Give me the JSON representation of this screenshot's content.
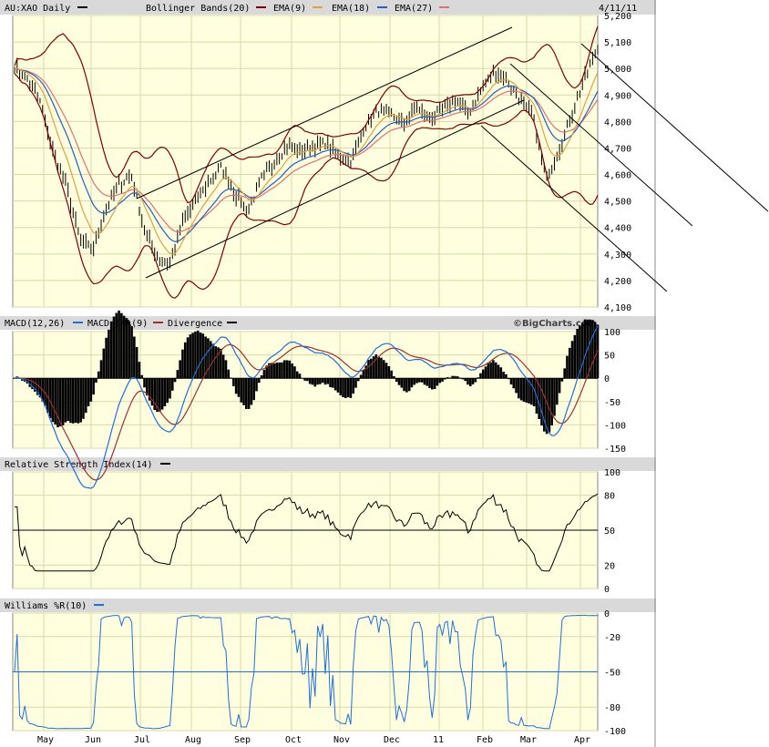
{
  "colors": {
    "panel_bg": "#ffffe0",
    "header_bg": "#d9d9d9",
    "grid": "#d8d8a8",
    "price": "#000000",
    "bollinger": "#800000",
    "ema9": "#e0a040",
    "ema18": "#2060c0",
    "ema27": "#e07070",
    "macd": "#1e6fd9",
    "macd_signal": "#a03030",
    "divergence": "#000000",
    "rsi": "#000000",
    "williams": "#1e6fd9",
    "trend_lines": "#000000"
  },
  "header": {
    "symbol": "AU:XAO Daily",
    "bollinger": "Bollinger Bands(20)",
    "ema9": "EMA(9)",
    "ema18": "EMA(18)",
    "ema27": "EMA(27)",
    "date": "4/11/11"
  },
  "macd_header": {
    "macd": "MACD(12,26)",
    "macd_ema": "MACD EMA(9)",
    "divergence": "Divergence",
    "watermark": "©BigCharts.com"
  },
  "rsi_header": {
    "label": "Relative Strength Index(14)"
  },
  "williams_header": {
    "label": "Williams %R(10)"
  },
  "x_labels": [
    "May",
    "Jun",
    "Jul",
    "Aug",
    "Sep",
    "Oct",
    "Nov",
    "Dec",
    "11",
    "Feb",
    "Mar",
    "Apr"
  ],
  "chart_data": [
    {
      "type": "line",
      "panel": "price",
      "ylim": [
        4100,
        5200
      ],
      "y_ticks": [
        "5,200",
        "5,100",
        "5,000",
        "4,900",
        "4,800",
        "4,700",
        "4,600",
        "4,500",
        "4,400",
        "4,300",
        "4,200",
        "4,100"
      ],
      "series": [
        {
          "name": "AU:XAO Daily",
          "values": [
            5010,
            4960,
            4870,
            4680,
            4560,
            4360,
            4310,
            4460,
            4560,
            4600,
            4390,
            4290,
            4260,
            4420,
            4500,
            4570,
            4630,
            4530,
            4460,
            4580,
            4640,
            4710,
            4690,
            4700,
            4720,
            4670,
            4650,
            4780,
            4840,
            4830,
            4790,
            4850,
            4810,
            4840,
            4880,
            4830,
            4920,
            4990,
            4960,
            4880,
            4820,
            4580,
            4690,
            4830,
            4960,
            5080
          ]
        }
      ]
    },
    {
      "type": "line",
      "panel": "macd",
      "ylim": [
        -150,
        100
      ],
      "y_ticks": [
        "100",
        "50",
        "0",
        "-50",
        "-100",
        "-150"
      ]
    },
    {
      "type": "line",
      "panel": "rsi",
      "ylim": [
        0,
        100
      ],
      "y_ticks": [
        "100",
        "80",
        "50",
        "20",
        "0"
      ]
    },
    {
      "type": "line",
      "panel": "williams",
      "ylim": [
        -100,
        0
      ],
      "y_ticks": [
        "0",
        "-20",
        "-50",
        "-80",
        "-100"
      ]
    }
  ]
}
